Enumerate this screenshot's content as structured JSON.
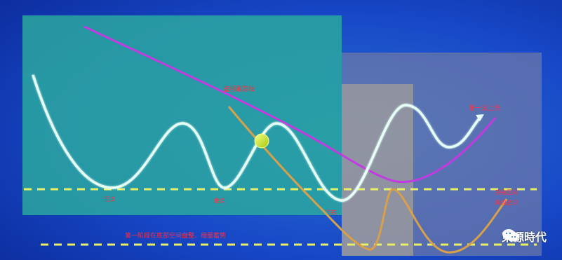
{
  "colors": {
    "bg_dark": "#0b2a9a",
    "bg_light": "#2a6fd6",
    "teal_panel": "#2aa7a0",
    "slate_panel": "#6e7aa8",
    "grey_panel": "#a7a19a",
    "white_curve": "#e6fff7",
    "magenta_curve": "#c03cdf",
    "orange_curve": "#d9a04a",
    "yellow_dash": "#e8f06a",
    "red_text": "#ff2f3f",
    "green_ball": "#d6f02a"
  },
  "labels": {
    "magenta_line": "鉴视跟踪线",
    "white_right": "第一波上涨",
    "left_trough": "低点",
    "mid_trough": "低点",
    "mid_bottom": "下跌",
    "right_1": "突破区间",
    "right_2": "阶段底部",
    "bottom_text": "第一阶段在底部空间盘整、缩量蓄势"
  },
  "watermark": {
    "icon": "wechat-icon",
    "text": "東源時代"
  }
}
